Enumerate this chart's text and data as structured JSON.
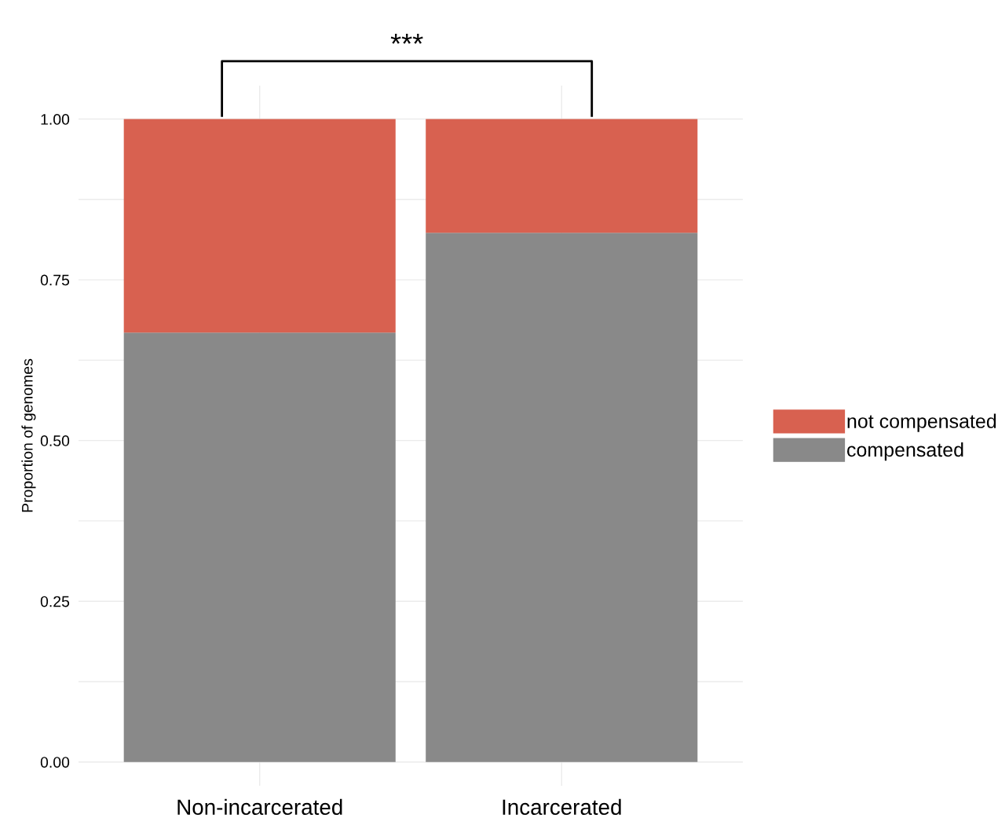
{
  "chart_data": {
    "type": "bar",
    "stacked": true,
    "ylabel": "Proportion of genomes",
    "categories": [
      "Non-incarcerated",
      "Incarcerated"
    ],
    "series": [
      {
        "name": "compensated",
        "color": "#898989",
        "values": [
          0.668,
          0.823
        ]
      },
      {
        "name": "not compensated",
        "color": "#d86150",
        "values": [
          0.332,
          0.177
        ]
      }
    ],
    "ylim": [
      -0.037,
      1.052
    ],
    "yticks": [
      {
        "value": 0,
        "label": "0.00"
      },
      {
        "value": 0.125,
        "label": null
      },
      {
        "value": 0.25,
        "label": "0.25"
      },
      {
        "value": 0.375,
        "label": null
      },
      {
        "value": 0.5,
        "label": "0.50"
      },
      {
        "value": 0.625,
        "label": null
      },
      {
        "value": 0.75,
        "label": "0.75"
      },
      {
        "value": 0.875,
        "label": null
      },
      {
        "value": 1,
        "label": "1.00"
      }
    ],
    "grid": true,
    "legend": "right",
    "annotations": [
      "***"
    ]
  }
}
